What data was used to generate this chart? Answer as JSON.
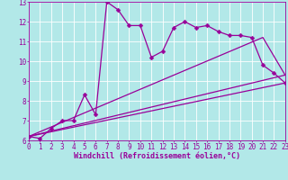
{
  "xlabel": "Windchill (Refroidissement éolien,°C)",
  "bg_color": "#b2e8e8",
  "line_color": "#990099",
  "grid_color": "#ffffff",
  "xlim": [
    0,
    23
  ],
  "ylim": [
    6,
    13
  ],
  "x_ticks": [
    0,
    1,
    2,
    3,
    4,
    5,
    6,
    7,
    8,
    9,
    10,
    11,
    12,
    13,
    14,
    15,
    16,
    17,
    18,
    19,
    20,
    21,
    22,
    23
  ],
  "y_ticks": [
    6,
    7,
    8,
    9,
    10,
    11,
    12,
    13
  ],
  "series1_x": [
    0,
    1,
    2,
    3,
    4,
    5,
    6,
    7,
    8,
    9,
    10,
    11,
    12,
    13,
    14,
    15,
    16,
    17,
    18,
    19,
    20,
    21,
    22,
    23
  ],
  "series1_y": [
    6.2,
    6.1,
    6.6,
    7.0,
    7.0,
    8.3,
    7.3,
    13.0,
    12.6,
    11.8,
    11.8,
    10.2,
    10.5,
    11.7,
    12.0,
    11.7,
    11.8,
    11.5,
    11.3,
    11.3,
    11.2,
    9.8,
    9.4,
    8.9
  ],
  "line2_x": [
    0,
    23
  ],
  "line2_y": [
    6.2,
    8.9
  ],
  "line3_x": [
    0,
    23
  ],
  "line3_y": [
    6.2,
    9.3
  ],
  "line4_x": [
    0,
    21,
    23
  ],
  "line4_y": [
    6.2,
    11.2,
    9.3
  ],
  "marker_size": 2.5,
  "linewidth": 0.9,
  "xlabel_fontsize": 6,
  "tick_fontsize": 5.5
}
